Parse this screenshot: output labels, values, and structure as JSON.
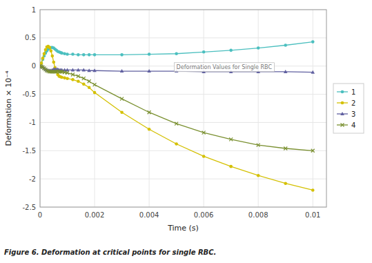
{
  "chart_data": {
    "type": "line",
    "xlabel": "Time (s)",
    "ylabel": "Deformation × 10⁻⁴",
    "caption": "Figure 6. Deformation at critical points for single RBC.",
    "xlim": [
      0,
      0.0105
    ],
    "ylim": [
      -2.5,
      1.0
    ],
    "xticks": [
      0,
      0.002,
      0.004,
      0.006,
      0.008,
      0.01
    ],
    "yticks": [
      -2.5,
      -2,
      -1.5,
      -1,
      -0.5,
      0,
      0.5,
      1
    ],
    "grid": true,
    "legend": "right",
    "x": [
      0,
      5e-05,
      0.0001,
      0.00015,
      0.0002,
      0.00025,
      0.0003,
      0.00035,
      0.0004,
      0.00045,
      0.0005,
      0.00055,
      0.0006,
      0.00065,
      0.0007,
      0.00075,
      0.0008,
      0.0009,
      0.001,
      0.0012,
      0.0014,
      0.0016,
      0.0018,
      0.002,
      0.003,
      0.004,
      0.005,
      0.006,
      0.007,
      0.008,
      0.009,
      0.01
    ],
    "series": [
      {
        "name": "1",
        "color": "#4bbfbf",
        "marker": "circle",
        "line_style": "solid",
        "values": [
          0,
          0.05,
          0.12,
          0.18,
          0.23,
          0.27,
          0.3,
          0.32,
          0.33,
          0.33,
          0.32,
          0.3,
          0.28,
          0.26,
          0.25,
          0.24,
          0.23,
          0.22,
          0.21,
          0.21,
          0.2,
          0.2,
          0.2,
          0.2,
          0.2,
          0.21,
          0.22,
          0.25,
          0.28,
          0.32,
          0.37,
          0.43
        ]
      },
      {
        "name": "2",
        "color": "#d4c000",
        "marker": "circle",
        "line_style": "solid",
        "values": [
          0,
          0.05,
          0.14,
          0.22,
          0.29,
          0.34,
          0.35,
          0.33,
          0.27,
          0.18,
          0.07,
          -0.03,
          -0.1,
          -0.15,
          -0.18,
          -0.19,
          -0.2,
          -0.21,
          -0.22,
          -0.24,
          -0.27,
          -0.32,
          -0.38,
          -0.47,
          -0.82,
          -1.12,
          -1.38,
          -1.6,
          -1.78,
          -1.94,
          -2.08,
          -2.2
        ]
      },
      {
        "name": "3",
        "color": "#6060a0",
        "marker": "triangle",
        "line_style": "solid",
        "values": [
          0,
          -0.01,
          -0.02,
          -0.04,
          -0.06,
          -0.07,
          -0.08,
          -0.08,
          -0.08,
          -0.07,
          -0.06,
          -0.06,
          -0.06,
          -0.06,
          -0.07,
          -0.07,
          -0.07,
          -0.07,
          -0.07,
          -0.07,
          -0.07,
          -0.07,
          -0.08,
          -0.08,
          -0.09,
          -0.09,
          -0.09,
          -0.1,
          -0.1,
          -0.1,
          -0.1,
          -0.11
        ]
      },
      {
        "name": "4",
        "color": "#7a9030",
        "marker": "x",
        "line_style": "solid",
        "values": [
          0,
          -0.01,
          -0.02,
          -0.04,
          -0.06,
          -0.08,
          -0.09,
          -0.1,
          -0.1,
          -0.1,
          -0.1,
          -0.1,
          -0.1,
          -0.09,
          -0.1,
          -0.1,
          -0.1,
          -0.11,
          -0.12,
          -0.15,
          -0.18,
          -0.22,
          -0.27,
          -0.33,
          -0.58,
          -0.82,
          -1.02,
          -1.18,
          -1.3,
          -1.4,
          -1.46,
          -1.5
        ]
      }
    ],
    "annotations": [
      {
        "text": "Deformation Values for Single RBC",
        "x": 0.005,
        "y": -0.05
      }
    ]
  }
}
